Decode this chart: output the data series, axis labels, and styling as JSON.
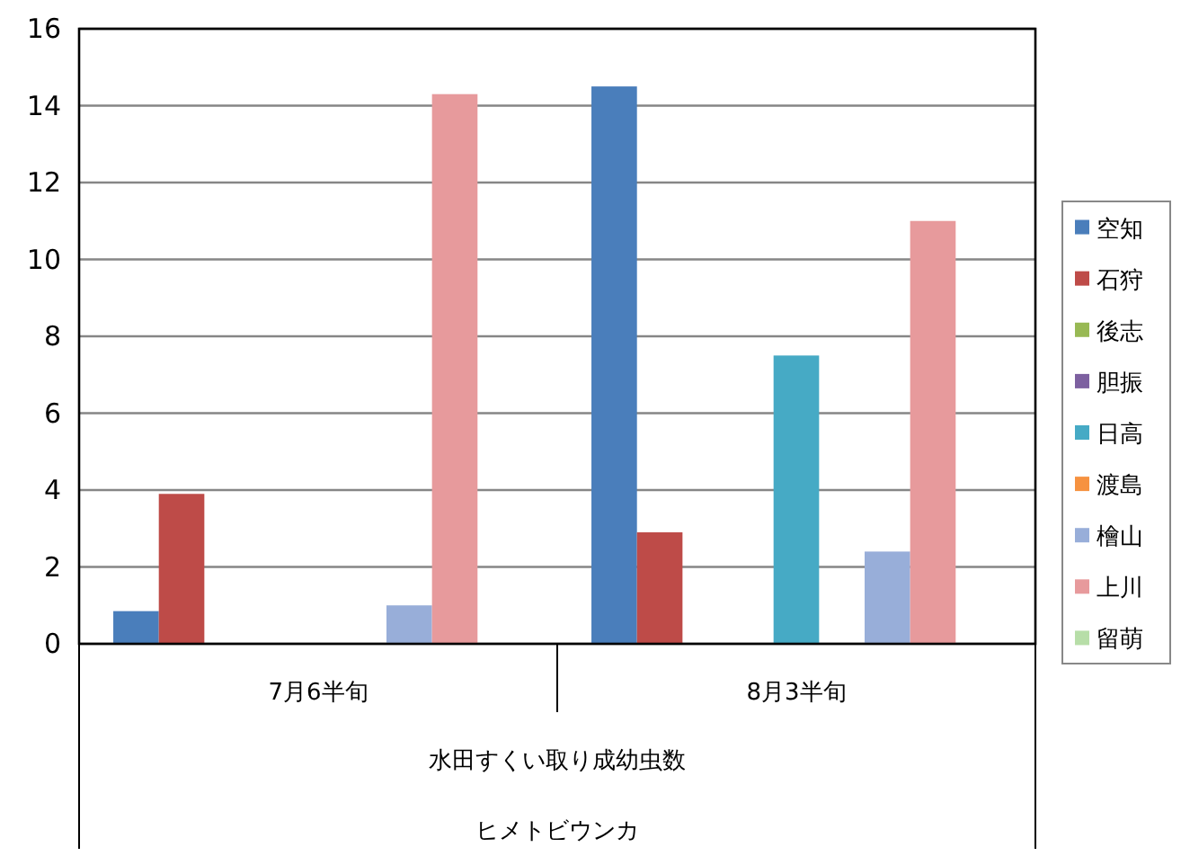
{
  "chart_data": {
    "type": "bar",
    "categories": [
      "7月6半旬",
      "8月3半旬"
    ],
    "xlabel": "水田すくい取り成幼虫数",
    "annotations": [
      "ヒメトビウンカ"
    ],
    "series": [
      {
        "name": "空知",
        "color": "#4a7ebb",
        "values": [
          0.85,
          14.5
        ]
      },
      {
        "name": "石狩",
        "color": "#be4b48",
        "values": [
          3.9,
          2.9
        ]
      },
      {
        "name": "後志",
        "color": "#98b954",
        "values": [
          0,
          0
        ]
      },
      {
        "name": "胆振",
        "color": "#7d60a0",
        "values": [
          0,
          0
        ]
      },
      {
        "name": "日高",
        "color": "#46aac5",
        "values": [
          0,
          7.5
        ]
      },
      {
        "name": "渡島",
        "color": "#f69240",
        "values": [
          0,
          0
        ]
      },
      {
        "name": "檜山",
        "color": "#98aed9",
        "values": [
          1.0,
          2.4
        ]
      },
      {
        "name": "上川",
        "color": "#e79a9c",
        "values": [
          14.3,
          11.0
        ]
      },
      {
        "name": "留萌",
        "color": "#b7dea8",
        "values": [
          0,
          0
        ]
      }
    ],
    "ylim": [
      0,
      16
    ],
    "yticks": [
      0,
      2,
      4,
      6,
      8,
      10,
      12,
      14,
      16
    ],
    "grid": "y",
    "legend": "right"
  }
}
